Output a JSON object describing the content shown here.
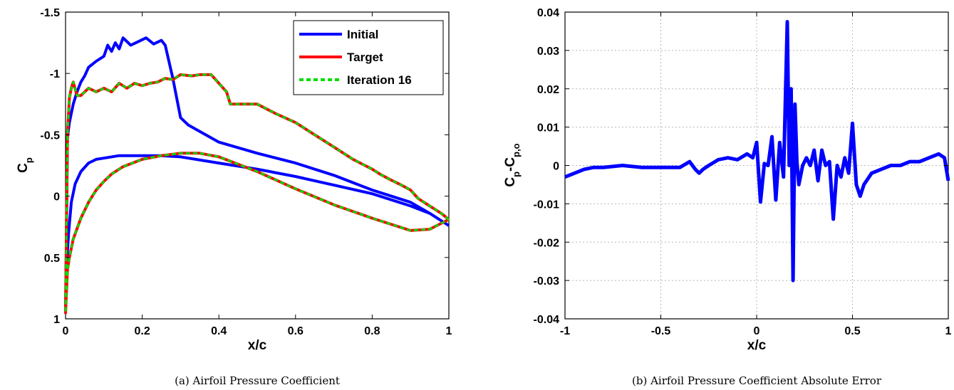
{
  "chart_data": [
    {
      "type": "line",
      "caption": "(a) Airfoil Pressure Coefficient",
      "xlabel": "x/c",
      "ylabel_main": "C",
      "ylabel_sub": "p",
      "xlim": [
        0,
        1
      ],
      "ylim": [
        -1.5,
        1
      ],
      "y_reversed": true,
      "grid": false,
      "legend_position": "top-right",
      "x_ticks": [
        0,
        0.2,
        0.4,
        0.6,
        0.8,
        1
      ],
      "x_tick_labels": [
        "0",
        "0.2",
        "0.4",
        "0.6",
        "0.8",
        "1"
      ],
      "y_ticks": [
        -1.5,
        -1,
        -0.5,
        0,
        0.5,
        1
      ],
      "y_tick_labels": [
        "-1.5",
        "-1",
        "-0.5",
        "0",
        "0.5",
        "1"
      ],
      "series": [
        {
          "name": "Initial",
          "color": "#0000ff",
          "style": "solid",
          "x": [
            1.0,
            0.95,
            0.9,
            0.8,
            0.7,
            0.6,
            0.5,
            0.4,
            0.32,
            0.3,
            0.28,
            0.26,
            0.25,
            0.23,
            0.21,
            0.19,
            0.17,
            0.15,
            0.14,
            0.13,
            0.12,
            0.11,
            0.1,
            0.08,
            0.06,
            0.05,
            0.04,
            0.03,
            0.02,
            0.01,
            0.005,
            0.0,
            0.003,
            0.008,
            0.015,
            0.025,
            0.04,
            0.06,
            0.08,
            0.1,
            0.14,
            0.2,
            0.25,
            0.3,
            0.4,
            0.5,
            0.6,
            0.7,
            0.8,
            0.9,
            0.95,
            1.0
          ],
          "y": [
            0.24,
            0.14,
            0.05,
            -0.05,
            -0.17,
            -0.27,
            -0.35,
            -0.44,
            -0.58,
            -0.64,
            -0.96,
            -1.23,
            -1.27,
            -1.24,
            -1.29,
            -1.26,
            -1.23,
            -1.29,
            -1.2,
            -1.25,
            -1.18,
            -1.23,
            -1.14,
            -1.1,
            -1.05,
            -0.98,
            -0.93,
            -0.85,
            -0.75,
            -0.6,
            -0.48,
            0.95,
            0.55,
            0.3,
            0.05,
            -0.1,
            -0.2,
            -0.27,
            -0.3,
            -0.31,
            -0.33,
            -0.33,
            -0.33,
            -0.32,
            -0.27,
            -0.22,
            -0.16,
            -0.09,
            -0.02,
            0.08,
            0.14,
            0.24
          ]
        },
        {
          "name": "Target",
          "color": "#ff0000",
          "style": "solid",
          "x": [
            1.0,
            0.98,
            0.95,
            0.92,
            0.9,
            0.87,
            0.85,
            0.82,
            0.8,
            0.75,
            0.7,
            0.65,
            0.6,
            0.55,
            0.5,
            0.46,
            0.43,
            0.42,
            0.38,
            0.35,
            0.33,
            0.3,
            0.28,
            0.26,
            0.24,
            0.22,
            0.2,
            0.18,
            0.16,
            0.14,
            0.12,
            0.1,
            0.08,
            0.06,
            0.04,
            0.03,
            0.02,
            0.015,
            0.01,
            0.005,
            0.0,
            0.005,
            0.01,
            0.02,
            0.04,
            0.06,
            0.08,
            0.1,
            0.12,
            0.15,
            0.2,
            0.25,
            0.3,
            0.35,
            0.4,
            0.5,
            0.6,
            0.7,
            0.8,
            0.9,
            0.95,
            1.0
          ],
          "y": [
            0.19,
            0.14,
            0.08,
            0.02,
            -0.05,
            -0.1,
            -0.13,
            -0.18,
            -0.22,
            -0.3,
            -0.4,
            -0.5,
            -0.6,
            -0.67,
            -0.75,
            -0.75,
            -0.75,
            -0.85,
            -0.99,
            -0.99,
            -0.98,
            -0.99,
            -0.95,
            -0.96,
            -0.93,
            -0.92,
            -0.9,
            -0.92,
            -0.88,
            -0.92,
            -0.85,
            -0.88,
            -0.85,
            -0.88,
            -0.82,
            -0.82,
            -0.93,
            -0.88,
            -0.8,
            -0.5,
            0.95,
            0.6,
            0.5,
            0.35,
            0.18,
            0.05,
            -0.05,
            -0.12,
            -0.18,
            -0.24,
            -0.3,
            -0.33,
            -0.35,
            -0.35,
            -0.32,
            -0.2,
            -0.06,
            0.07,
            0.18,
            0.28,
            0.27,
            0.19
          ]
        },
        {
          "name": "Iteration 16",
          "color": "#00dd00",
          "style": "dashed",
          "x": [
            1.0,
            0.98,
            0.95,
            0.92,
            0.9,
            0.87,
            0.85,
            0.82,
            0.8,
            0.75,
            0.7,
            0.65,
            0.6,
            0.55,
            0.5,
            0.46,
            0.43,
            0.42,
            0.38,
            0.35,
            0.33,
            0.3,
            0.28,
            0.26,
            0.24,
            0.22,
            0.2,
            0.18,
            0.16,
            0.14,
            0.12,
            0.1,
            0.08,
            0.06,
            0.04,
            0.03,
            0.02,
            0.015,
            0.01,
            0.005,
            0.0,
            0.005,
            0.01,
            0.02,
            0.04,
            0.06,
            0.08,
            0.1,
            0.12,
            0.15,
            0.2,
            0.25,
            0.3,
            0.35,
            0.4,
            0.5,
            0.6,
            0.7,
            0.8,
            0.9,
            0.95,
            1.0
          ],
          "y": [
            0.19,
            0.14,
            0.08,
            0.02,
            -0.05,
            -0.1,
            -0.13,
            -0.18,
            -0.22,
            -0.3,
            -0.4,
            -0.5,
            -0.6,
            -0.67,
            -0.75,
            -0.75,
            -0.75,
            -0.85,
            -0.99,
            -0.99,
            -0.98,
            -0.99,
            -0.95,
            -0.96,
            -0.93,
            -0.92,
            -0.9,
            -0.92,
            -0.88,
            -0.92,
            -0.85,
            -0.88,
            -0.85,
            -0.88,
            -0.82,
            -0.82,
            -0.93,
            -0.88,
            -0.8,
            -0.5,
            0.95,
            0.6,
            0.5,
            0.35,
            0.18,
            0.05,
            -0.05,
            -0.12,
            -0.18,
            -0.24,
            -0.3,
            -0.33,
            -0.35,
            -0.35,
            -0.32,
            -0.2,
            -0.06,
            0.07,
            0.18,
            0.28,
            0.27,
            0.19
          ]
        }
      ]
    },
    {
      "type": "line",
      "caption": "(b) Airfoil Pressure Coefficient Absolute Error",
      "xlabel": "x/c",
      "ylabel_main": "C",
      "ylabel_sub": "p",
      "ylabel_mid": "-C",
      "ylabel_sub2": "p,o",
      "xlim": [
        -1,
        1
      ],
      "ylim": [
        -0.04,
        0.04
      ],
      "grid": true,
      "x_ticks": [
        -1,
        -0.5,
        0,
        0.5,
        1
      ],
      "x_tick_labels": [
        "-1",
        "-0.5",
        "0",
        "0.5",
        "1"
      ],
      "y_ticks": [
        -0.04,
        -0.03,
        -0.02,
        -0.01,
        0,
        0.01,
        0.02,
        0.03,
        0.04
      ],
      "y_tick_labels": [
        "-0.04",
        "-0.03",
        "-0.02",
        "-0.01",
        "0",
        "0.01",
        "0.02",
        "0.03",
        "0.04"
      ],
      "series": [
        {
          "color": "#0000ff",
          "x": [
            -1.0,
            -0.95,
            -0.9,
            -0.85,
            -0.8,
            -0.7,
            -0.6,
            -0.5,
            -0.4,
            -0.35,
            -0.32,
            -0.3,
            -0.28,
            -0.25,
            -0.2,
            -0.15,
            -0.1,
            -0.05,
            -0.02,
            0.0,
            0.02,
            0.04,
            0.06,
            0.08,
            0.1,
            0.12,
            0.14,
            0.16,
            0.17,
            0.18,
            0.19,
            0.2,
            0.21,
            0.22,
            0.24,
            0.26,
            0.28,
            0.3,
            0.32,
            0.34,
            0.36,
            0.38,
            0.4,
            0.42,
            0.44,
            0.46,
            0.48,
            0.5,
            0.52,
            0.54,
            0.56,
            0.6,
            0.65,
            0.7,
            0.75,
            0.8,
            0.85,
            0.9,
            0.95,
            0.98,
            1.0
          ],
          "y": [
            -0.003,
            -0.002,
            -0.001,
            -0.0005,
            -0.0005,
            0.0,
            -0.0005,
            -0.0005,
            -0.0005,
            0.001,
            -0.001,
            -0.002,
            -0.001,
            0.0,
            0.0015,
            0.002,
            0.0015,
            0.003,
            0.002,
            0.006,
            -0.0095,
            0.0005,
            0.0,
            0.0075,
            -0.009,
            0.006,
            -0.003,
            0.0375,
            0.0,
            0.02,
            -0.03,
            0.016,
            0.001,
            -0.005,
            0.0,
            0.002,
            0.0,
            0.004,
            -0.004,
            0.004,
            0.0,
            0.001,
            -0.014,
            0.0,
            -0.003,
            0.002,
            -0.002,
            0.011,
            -0.005,
            -0.008,
            -0.005,
            -0.002,
            -0.001,
            0.0,
            0.0,
            0.001,
            0.001,
            0.002,
            0.003,
            0.002,
            -0.004
          ]
        }
      ]
    }
  ]
}
